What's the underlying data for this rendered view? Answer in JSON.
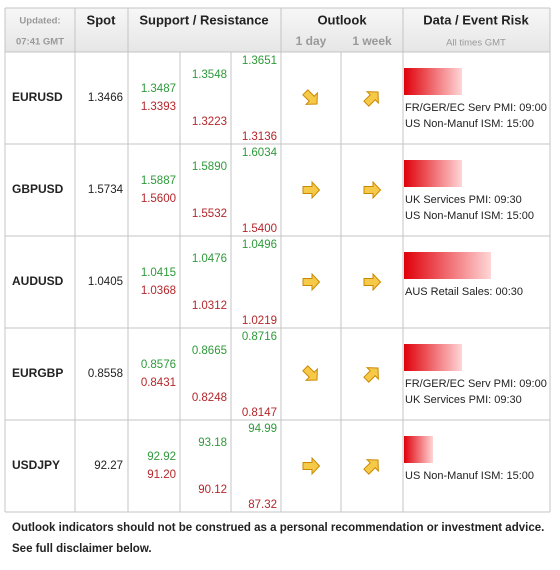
{
  "header": {
    "updated_label": "Updated:",
    "updated_time": "07:41 GMT",
    "spot": "Spot",
    "support_resistance": "Support / Resistance",
    "outlook": "Outlook",
    "outlook_1day": "1 day",
    "outlook_1week": "1 week",
    "event_risk": "Data / Event Risk",
    "times_note": "All times GMT"
  },
  "rows": [
    {
      "pair": "EURUSD",
      "spot": "1.3466",
      "levels": [
        [
          "1.3487",
          "1.3393"
        ],
        [
          "1.3548",
          "1.3223"
        ],
        [
          "1.3651",
          "1.3136"
        ]
      ],
      "outlook_1day": "down",
      "outlook_1week": "up",
      "risk": 2,
      "events": [
        "FR/GER/EC Serv PMI: 09:00",
        "US Non-Manuf ISM: 15:00"
      ]
    },
    {
      "pair": "GBPUSD",
      "spot": "1.5734",
      "levels": [
        [
          "1.5887",
          "1.5600"
        ],
        [
          "1.5890",
          "1.5532"
        ],
        [
          "1.6034",
          "1.5400"
        ]
      ],
      "outlook_1day": "flat",
      "outlook_1week": "flat",
      "risk": 2,
      "events": [
        "UK Services PMI: 09:30",
        "US Non-Manuf ISM: 15:00"
      ]
    },
    {
      "pair": "AUDUSD",
      "spot": "1.0405",
      "levels": [
        [
          "1.0415",
          "1.0368"
        ],
        [
          "1.0476",
          "1.0312"
        ],
        [
          "1.0496",
          "1.0219"
        ]
      ],
      "outlook_1day": "flat",
      "outlook_1week": "flat",
      "risk": 3,
      "events": [
        "AUS Retail Sales: 00:30"
      ]
    },
    {
      "pair": "EURGBP",
      "spot": "0.8558",
      "levels": [
        [
          "0.8576",
          "0.8431"
        ],
        [
          "0.8665",
          "0.8248"
        ],
        [
          "0.8716",
          "0.8147"
        ]
      ],
      "outlook_1day": "down",
      "outlook_1week": "up",
      "risk": 2,
      "events": [
        "FR/GER/EC Serv PMI: 09:00",
        "UK Services PMI: 09:30"
      ]
    },
    {
      "pair": "USDJPY",
      "spot": "92.27",
      "levels": [
        [
          "92.92",
          "91.20"
        ],
        [
          "93.18",
          "90.12"
        ],
        [
          "94.99",
          "87.32"
        ]
      ],
      "outlook_1day": "flat",
      "outlook_1week": "up",
      "risk": 1,
      "events": [
        "US Non-Manuf ISM: 15:00"
      ]
    }
  ],
  "footer": [
    "Outlook indicators should not be construed as a personal recommendation or investment advice.",
    "See full disclaimer below."
  ]
}
